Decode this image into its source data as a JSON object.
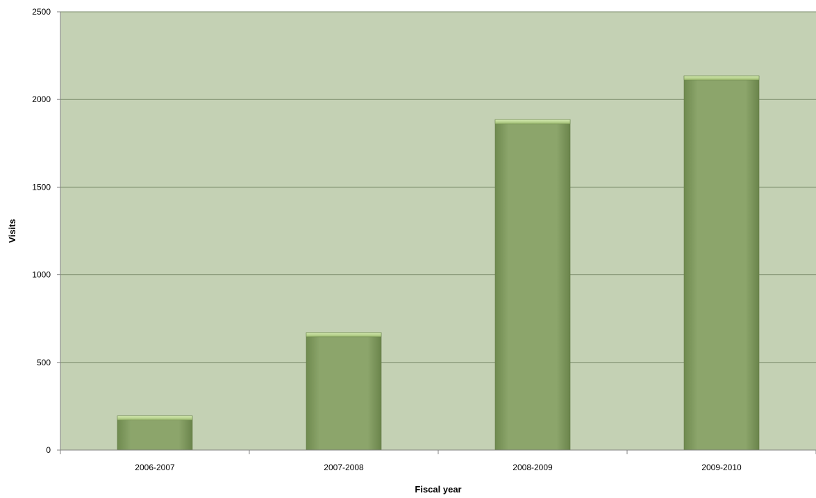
{
  "chart_data": {
    "type": "bar",
    "title": "",
    "xlabel": "Fiscal year",
    "ylabel": "Visits",
    "categories": [
      "2006-2007",
      "2007-2008",
      "2008-2009",
      "2009-2010"
    ],
    "values": [
      195,
      670,
      1885,
      2135
    ],
    "ylim": [
      0,
      2500
    ],
    "yticks": [
      "0",
      "500",
      "1000",
      "1500",
      "2000",
      "2500"
    ],
    "grid": true,
    "legend": "none",
    "colors": {
      "plot_background": "#c4d1b4",
      "bar_fill": "#8ca56b",
      "bar_top": "#b9d48e",
      "gridline": "#7a8a6a",
      "axis": "#808080"
    }
  }
}
